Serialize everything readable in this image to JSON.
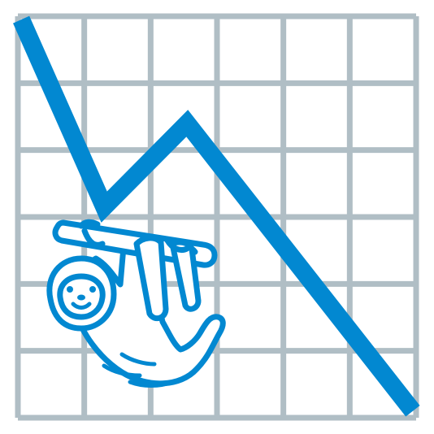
{
  "colors": {
    "background": "#ffffff",
    "grid": "#b0bec5",
    "trend_line": "#0288d1",
    "sloth_stroke": "#0288d1",
    "sloth_fill": "#ffffff"
  },
  "chart_data": {
    "type": "line",
    "grid": true,
    "grid_columns": 6,
    "grid_rows": 6,
    "xlim": [
      0,
      6
    ],
    "ylim": [
      0,
      6
    ],
    "series": [
      {
        "x": [
          0.05,
          1.3,
          2.55,
          5.95
        ],
        "y": [
          5.95,
          3.15,
          4.4,
          0.1
        ]
      }
    ]
  },
  "illustration": {
    "subject": "sloth-hanging-from-branch-icon"
  }
}
